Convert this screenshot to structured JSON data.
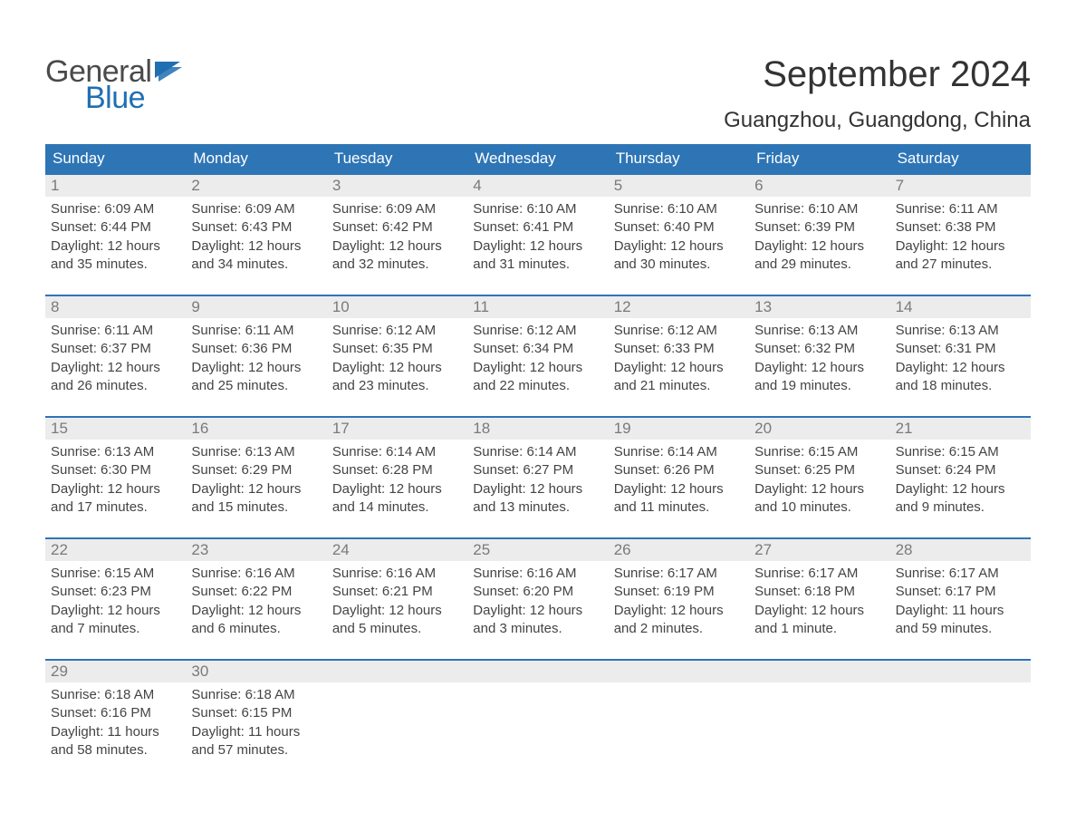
{
  "logo": {
    "text1": "General",
    "text2": "Blue",
    "flag_color": "#1f6fb2"
  },
  "title": {
    "month": "September 2024",
    "location": "Guangzhou, Guangdong, China"
  },
  "colors": {
    "header_bg": "#2e75b6",
    "header_text": "#ffffff",
    "daynum_bg": "#ececec",
    "daynum_text": "#7a7a7a",
    "week_border": "#2e75b6",
    "body_text": "#444444",
    "background": "#ffffff"
  },
  "weekdays": [
    "Sunday",
    "Monday",
    "Tuesday",
    "Wednesday",
    "Thursday",
    "Friday",
    "Saturday"
  ],
  "weeks": [
    [
      {
        "n": "1",
        "sr": "Sunrise: 6:09 AM",
        "ss": "Sunset: 6:44 PM",
        "d1": "Daylight: 12 hours",
        "d2": "and 35 minutes."
      },
      {
        "n": "2",
        "sr": "Sunrise: 6:09 AM",
        "ss": "Sunset: 6:43 PM",
        "d1": "Daylight: 12 hours",
        "d2": "and 34 minutes."
      },
      {
        "n": "3",
        "sr": "Sunrise: 6:09 AM",
        "ss": "Sunset: 6:42 PM",
        "d1": "Daylight: 12 hours",
        "d2": "and 32 minutes."
      },
      {
        "n": "4",
        "sr": "Sunrise: 6:10 AM",
        "ss": "Sunset: 6:41 PM",
        "d1": "Daylight: 12 hours",
        "d2": "and 31 minutes."
      },
      {
        "n": "5",
        "sr": "Sunrise: 6:10 AM",
        "ss": "Sunset: 6:40 PM",
        "d1": "Daylight: 12 hours",
        "d2": "and 30 minutes."
      },
      {
        "n": "6",
        "sr": "Sunrise: 6:10 AM",
        "ss": "Sunset: 6:39 PM",
        "d1": "Daylight: 12 hours",
        "d2": "and 29 minutes."
      },
      {
        "n": "7",
        "sr": "Sunrise: 6:11 AM",
        "ss": "Sunset: 6:38 PM",
        "d1": "Daylight: 12 hours",
        "d2": "and 27 minutes."
      }
    ],
    [
      {
        "n": "8",
        "sr": "Sunrise: 6:11 AM",
        "ss": "Sunset: 6:37 PM",
        "d1": "Daylight: 12 hours",
        "d2": "and 26 minutes."
      },
      {
        "n": "9",
        "sr": "Sunrise: 6:11 AM",
        "ss": "Sunset: 6:36 PM",
        "d1": "Daylight: 12 hours",
        "d2": "and 25 minutes."
      },
      {
        "n": "10",
        "sr": "Sunrise: 6:12 AM",
        "ss": "Sunset: 6:35 PM",
        "d1": "Daylight: 12 hours",
        "d2": "and 23 minutes."
      },
      {
        "n": "11",
        "sr": "Sunrise: 6:12 AM",
        "ss": "Sunset: 6:34 PM",
        "d1": "Daylight: 12 hours",
        "d2": "and 22 minutes."
      },
      {
        "n": "12",
        "sr": "Sunrise: 6:12 AM",
        "ss": "Sunset: 6:33 PM",
        "d1": "Daylight: 12 hours",
        "d2": "and 21 minutes."
      },
      {
        "n": "13",
        "sr": "Sunrise: 6:13 AM",
        "ss": "Sunset: 6:32 PM",
        "d1": "Daylight: 12 hours",
        "d2": "and 19 minutes."
      },
      {
        "n": "14",
        "sr": "Sunrise: 6:13 AM",
        "ss": "Sunset: 6:31 PM",
        "d1": "Daylight: 12 hours",
        "d2": "and 18 minutes."
      }
    ],
    [
      {
        "n": "15",
        "sr": "Sunrise: 6:13 AM",
        "ss": "Sunset: 6:30 PM",
        "d1": "Daylight: 12 hours",
        "d2": "and 17 minutes."
      },
      {
        "n": "16",
        "sr": "Sunrise: 6:13 AM",
        "ss": "Sunset: 6:29 PM",
        "d1": "Daylight: 12 hours",
        "d2": "and 15 minutes."
      },
      {
        "n": "17",
        "sr": "Sunrise: 6:14 AM",
        "ss": "Sunset: 6:28 PM",
        "d1": "Daylight: 12 hours",
        "d2": "and 14 minutes."
      },
      {
        "n": "18",
        "sr": "Sunrise: 6:14 AM",
        "ss": "Sunset: 6:27 PM",
        "d1": "Daylight: 12 hours",
        "d2": "and 13 minutes."
      },
      {
        "n": "19",
        "sr": "Sunrise: 6:14 AM",
        "ss": "Sunset: 6:26 PM",
        "d1": "Daylight: 12 hours",
        "d2": "and 11 minutes."
      },
      {
        "n": "20",
        "sr": "Sunrise: 6:15 AM",
        "ss": "Sunset: 6:25 PM",
        "d1": "Daylight: 12 hours",
        "d2": "and 10 minutes."
      },
      {
        "n": "21",
        "sr": "Sunrise: 6:15 AM",
        "ss": "Sunset: 6:24 PM",
        "d1": "Daylight: 12 hours",
        "d2": "and 9 minutes."
      }
    ],
    [
      {
        "n": "22",
        "sr": "Sunrise: 6:15 AM",
        "ss": "Sunset: 6:23 PM",
        "d1": "Daylight: 12 hours",
        "d2": "and 7 minutes."
      },
      {
        "n": "23",
        "sr": "Sunrise: 6:16 AM",
        "ss": "Sunset: 6:22 PM",
        "d1": "Daylight: 12 hours",
        "d2": "and 6 minutes."
      },
      {
        "n": "24",
        "sr": "Sunrise: 6:16 AM",
        "ss": "Sunset: 6:21 PM",
        "d1": "Daylight: 12 hours",
        "d2": "and 5 minutes."
      },
      {
        "n": "25",
        "sr": "Sunrise: 6:16 AM",
        "ss": "Sunset: 6:20 PM",
        "d1": "Daylight: 12 hours",
        "d2": "and 3 minutes."
      },
      {
        "n": "26",
        "sr": "Sunrise: 6:17 AM",
        "ss": "Sunset: 6:19 PM",
        "d1": "Daylight: 12 hours",
        "d2": "and 2 minutes."
      },
      {
        "n": "27",
        "sr": "Sunrise: 6:17 AM",
        "ss": "Sunset: 6:18 PM",
        "d1": "Daylight: 12 hours",
        "d2": "and 1 minute."
      },
      {
        "n": "28",
        "sr": "Sunrise: 6:17 AM",
        "ss": "Sunset: 6:17 PM",
        "d1": "Daylight: 11 hours",
        "d2": "and 59 minutes."
      }
    ],
    [
      {
        "n": "29",
        "sr": "Sunrise: 6:18 AM",
        "ss": "Sunset: 6:16 PM",
        "d1": "Daylight: 11 hours",
        "d2": "and 58 minutes."
      },
      {
        "n": "30",
        "sr": "Sunrise: 6:18 AM",
        "ss": "Sunset: 6:15 PM",
        "d1": "Daylight: 11 hours",
        "d2": "and 57 minutes."
      },
      {
        "n": "",
        "sr": "",
        "ss": "",
        "d1": "",
        "d2": ""
      },
      {
        "n": "",
        "sr": "",
        "ss": "",
        "d1": "",
        "d2": ""
      },
      {
        "n": "",
        "sr": "",
        "ss": "",
        "d1": "",
        "d2": ""
      },
      {
        "n": "",
        "sr": "",
        "ss": "",
        "d1": "",
        "d2": ""
      },
      {
        "n": "",
        "sr": "",
        "ss": "",
        "d1": "",
        "d2": ""
      }
    ]
  ]
}
